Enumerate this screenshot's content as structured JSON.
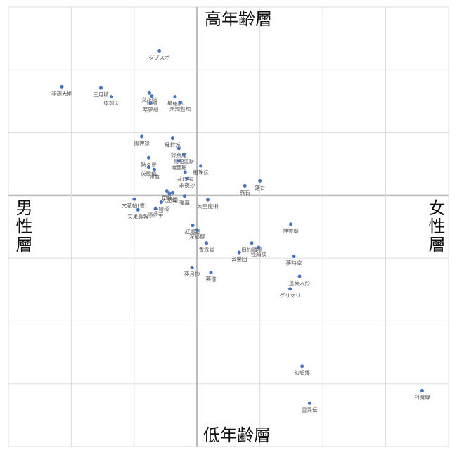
{
  "chart_data": {
    "type": "scatter",
    "top_label": "高年齢層",
    "bottom_label": "低年齢層",
    "left_label": "男性層",
    "right_label": "女性層",
    "xlim": [
      -3,
      4
    ],
    "ylim": [
      -4,
      3
    ],
    "xticks": [
      -3,
      -2,
      -1,
      0,
      1,
      2,
      3,
      4
    ],
    "yticks": [
      -4,
      -3,
      -2,
      -1,
      0,
      1,
      2,
      3
    ],
    "grid": true,
    "color": "#4472c4",
    "point_labels": [
      "ダブスポ",
      "三月精",
      "非想天則",
      "緋想天",
      "文花帖",
      "妖精",
      "星蓮船",
      "未知魅知",
      "萃夢想",
      "風神録",
      "輝針城",
      "鈴奈庵",
      "妖々夢",
      "鳥船遺跡",
      "地霊殿",
      "茨歌仙",
      "卯酉",
      "紺珠伝",
      "花映塚",
      "永夜抄",
      "伊弉",
      "求聞",
      "天空璋",
      "弾幕",
      "文花帖(書)",
      "心綺楼",
      "大空魔術",
      "蓬台",
      "燕石",
      "文果真報",
      "憑依華",
      "紅魔郷",
      "深秘録",
      "神霊廟",
      "旧約酒場",
      "香霖堂",
      "怪綺談",
      "幺樂団",
      "夢時空",
      "夢月抄",
      "夢違",
      "蓬莱人形",
      "グリマリ",
      "幻想郷",
      "封魔録",
      "靈異伝"
    ],
    "x": [
      -0.6,
      -1.53,
      -2.15,
      -1.36,
      -0.76,
      -0.72,
      -0.35,
      -0.27,
      -0.74,
      -0.88,
      -0.39,
      -0.29,
      -0.77,
      -0.21,
      -0.29,
      -0.77,
      -0.68,
      0.06,
      -0.19,
      -0.16,
      -0.48,
      -0.39,
      -0.44,
      -0.2,
      -1.0,
      -0.57,
      0.17,
      1.0,
      0.76,
      -0.94,
      -0.66,
      -0.07,
      0.0,
      1.49,
      0.87,
      0.15,
      0.98,
      0.67,
      1.54,
      -0.08,
      0.22,
      1.63,
      1.48,
      1.67,
      3.58,
      1.79
    ],
    "values": [
      2.3,
      1.71,
      1.73,
      1.57,
      1.63,
      1.58,
      1.57,
      1.48,
      1.47,
      0.94,
      0.91,
      0.75,
      0.6,
      0.65,
      0.55,
      0.45,
      0.41,
      0.47,
      0.37,
      0.27,
      0.07,
      0.04,
      0.03,
      -0.01,
      -0.06,
      -0.11,
      -0.07,
      0.23,
      0.15,
      -0.23,
      -0.21,
      -0.48,
      -0.55,
      -0.46,
      -0.76,
      -0.76,
      -0.83,
      -0.91,
      -0.97,
      -1.15,
      -1.23,
      -1.29,
      -1.49,
      -2.72,
      -3.11,
      -3.31
    ]
  }
}
